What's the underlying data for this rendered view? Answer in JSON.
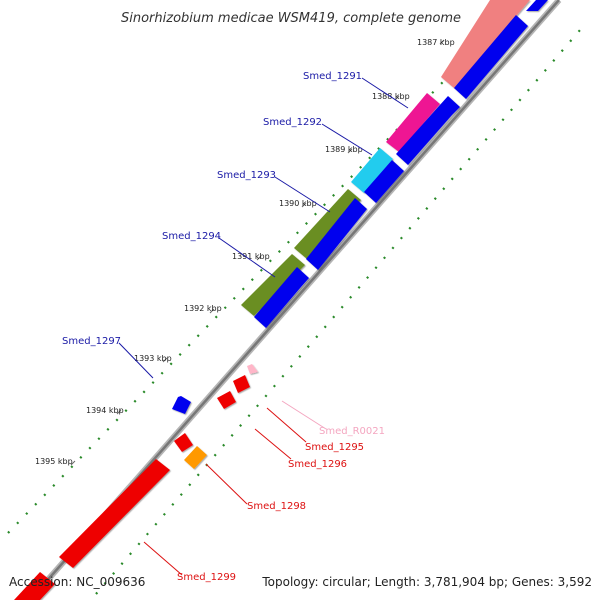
{
  "title": "Sinorhizobium medicae WSM419, complete genome",
  "footer": {
    "accession": "Accession: NC_009636",
    "topology": "Topology: circular; Length: 3,781,904 bp; Genes: 3,592"
  },
  "kbp_labels": [
    "1387 kbp",
    "1388 kbp",
    "1389 kbp",
    "1390 kbp",
    "1391 kbp",
    "1392 kbp",
    "1393 kbp",
    "1394 kbp",
    "1395 kbp"
  ],
  "genes": [
    {
      "id": "Smed_1291",
      "color": "#1a1aa6"
    },
    {
      "id": "Smed_1292",
      "color": "#1a1aa6"
    },
    {
      "id": "Smed_1293",
      "color": "#1a1aa6"
    },
    {
      "id": "Smed_1294",
      "color": "#1a1aa6"
    },
    {
      "id": "Smed_1297",
      "color": "#1a1aa6"
    },
    {
      "id": "Smed_R0021",
      "color": "#f4a6c0"
    },
    {
      "id": "Smed_1295",
      "color": "#dd1111"
    },
    {
      "id": "Smed_1296",
      "color": "#dd1111"
    },
    {
      "id": "Smed_1298",
      "color": "#dd1111"
    },
    {
      "id": "Smed_1299",
      "color": "#dd1111"
    }
  ],
  "colors": {
    "backbone": "#888888",
    "forward_cds": "#0000ee",
    "cog_salmon": "#f08080",
    "cog_magenta": "#ee1493",
    "cog_cyan": "#22ccee",
    "cog_olive": "#6b8e23",
    "reverse_cds": "#ee0000",
    "orange": "#ff9900",
    "rna": "#ffb6c8",
    "tick": "#228b22"
  }
}
